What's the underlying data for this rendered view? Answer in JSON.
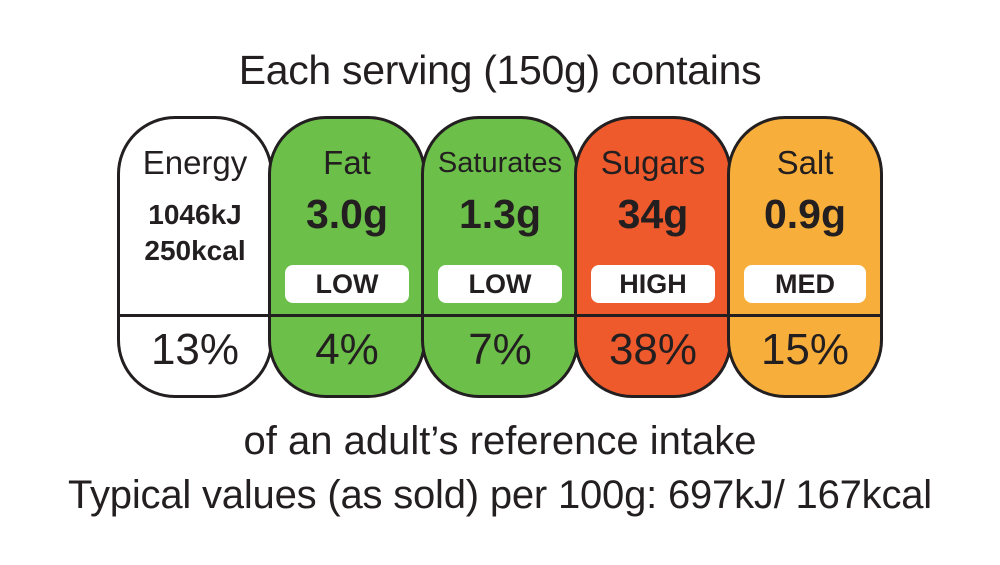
{
  "heading": "Each serving (150g) contains",
  "segments": [
    {
      "name": "Energy",
      "value_line1": "1046kJ",
      "value_line2": "250kcal",
      "percent": "13%",
      "color": "#ffffff"
    },
    {
      "name": "Fat",
      "value": "3.0g",
      "level": "LOW",
      "percent": "4%",
      "color": "#6cc04a"
    },
    {
      "name": "Saturates",
      "value": "1.3g",
      "level": "LOW",
      "percent": "7%",
      "color": "#6cc04a"
    },
    {
      "name": "Sugars",
      "value": "34g",
      "level": "HIGH",
      "percent": "38%",
      "color": "#ee5a2c"
    },
    {
      "name": "Salt",
      "value": "0.9g",
      "level": "MED",
      "percent": "15%",
      "color": "#f8ae3a"
    }
  ],
  "footer_line1": "of an adult’s reference intake",
  "footer_line2": "Typical values (as sold) per 100g: 697kJ/ 167kcal"
}
